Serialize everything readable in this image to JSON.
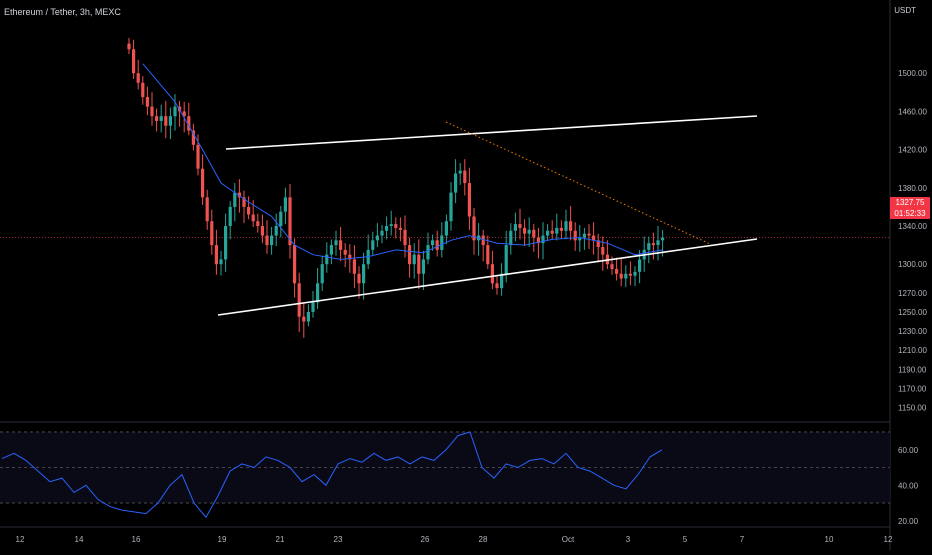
{
  "header": {
    "symbol_title": "Ethereum / Tether, 3h, MEXC",
    "currency_label": "USDT"
  },
  "price_badge": {
    "price": "1327.75",
    "countdown": "01:52:33"
  },
  "colors": {
    "background": "#000000",
    "up_candle": "#26a69a",
    "down_candle": "#ef5350",
    "ma_line": "#2962ff",
    "rsi_line": "#2962ff",
    "trendline": "#ffffff",
    "dotted_trendline": "#f57c00",
    "price_line": "#f23645",
    "grid": "#1a1a1a"
  },
  "chart_data": [
    {
      "type": "candlestick",
      "symbol": "ETH/USDT",
      "timeframe": "3h",
      "exchange": "MEXC",
      "ylim": [
        1140,
        1520
      ],
      "y_ticks": [
        1500,
        1460,
        1420,
        1380,
        1340,
        1300,
        1270,
        1250,
        1230,
        1210,
        1190,
        1170,
        1150
      ],
      "y_tick_labels": [
        "1500.00",
        "1460.00",
        "1420.00",
        "1380.00",
        "1340.00",
        "1300.00",
        "1270.00",
        "1250.00",
        "1230.00",
        "1210.00",
        "1190.00",
        "1170.00",
        "1150.00"
      ],
      "x_tick_labels": [
        "12",
        "14",
        "16",
        "19",
        "21",
        "23",
        "26",
        "28",
        "Oct",
        "3",
        "5",
        "7",
        "10",
        "12"
      ],
      "last_price": 1327.75,
      "price_path": [
        [
          0,
          1525
        ],
        [
          1,
          1500
        ],
        [
          2,
          1490
        ],
        [
          3,
          1475
        ],
        [
          4,
          1465
        ],
        [
          5,
          1455
        ],
        [
          6,
          1450
        ],
        [
          7,
          1455
        ],
        [
          8,
          1445
        ],
        [
          9,
          1455
        ],
        [
          10,
          1465
        ],
        [
          11,
          1460
        ],
        [
          12,
          1455
        ],
        [
          13,
          1440
        ],
        [
          14,
          1425
        ],
        [
          15,
          1400
        ],
        [
          16,
          1370
        ],
        [
          17,
          1345
        ],
        [
          18,
          1320
        ],
        [
          19,
          1300
        ],
        [
          20,
          1305
        ],
        [
          21,
          1340
        ],
        [
          22,
          1360
        ],
        [
          23,
          1375
        ],
        [
          24,
          1370
        ],
        [
          25,
          1360
        ],
        [
          26,
          1352
        ],
        [
          27,
          1345
        ],
        [
          28,
          1340
        ],
        [
          29,
          1330
        ],
        [
          30,
          1320
        ],
        [
          31,
          1330
        ],
        [
          32,
          1340
        ],
        [
          33,
          1355
        ],
        [
          34,
          1370
        ],
        [
          35,
          1320
        ],
        [
          36,
          1280
        ],
        [
          37,
          1245
        ],
        [
          38,
          1240
        ],
        [
          39,
          1250
        ],
        [
          40,
          1260
        ],
        [
          41,
          1280
        ],
        [
          42,
          1300
        ],
        [
          43,
          1310
        ],
        [
          44,
          1320
        ],
        [
          45,
          1325
        ],
        [
          46,
          1315
        ],
        [
          47,
          1310
        ],
        [
          48,
          1305
        ],
        [
          49,
          1290
        ],
        [
          50,
          1280
        ],
        [
          51,
          1300
        ],
        [
          52,
          1315
        ],
        [
          53,
          1325
        ],
        [
          54,
          1330
        ],
        [
          55,
          1335
        ],
        [
          56,
          1340
        ],
        [
          57,
          1342
        ],
        [
          58,
          1338
        ],
        [
          59,
          1336
        ],
        [
          60,
          1320
        ],
        [
          61,
          1300
        ],
        [
          62,
          1310
        ],
        [
          63,
          1290
        ],
        [
          64,
          1305
        ],
        [
          65,
          1320
        ],
        [
          66,
          1325
        ],
        [
          67,
          1315
        ],
        [
          68,
          1330
        ],
        [
          69,
          1345
        ],
        [
          70,
          1375
        ],
        [
          71,
          1395
        ],
        [
          72,
          1398
        ],
        [
          73,
          1385
        ],
        [
          74,
          1350
        ],
        [
          75,
          1325
        ],
        [
          76,
          1330
        ],
        [
          77,
          1320
        ],
        [
          78,
          1300
        ],
        [
          79,
          1280
        ],
        [
          80,
          1275
        ],
        [
          81,
          1290
        ],
        [
          82,
          1320
        ],
        [
          83,
          1335
        ],
        [
          84,
          1342
        ],
        [
          85,
          1338
        ],
        [
          86,
          1332
        ],
        [
          87,
          1336
        ],
        [
          88,
          1328
        ],
        [
          89,
          1322
        ],
        [
          90,
          1330
        ],
        [
          91,
          1335
        ],
        [
          92,
          1332
        ],
        [
          93,
          1338
        ],
        [
          94,
          1335
        ],
        [
          95,
          1345
        ],
        [
          96,
          1335
        ],
        [
          97,
          1325
        ],
        [
          98,
          1328
        ],
        [
          99,
          1332
        ],
        [
          100,
          1330
        ],
        [
          101,
          1325
        ],
        [
          102,
          1318
        ],
        [
          103,
          1310
        ],
        [
          104,
          1300
        ],
        [
          105,
          1295
        ],
        [
          106,
          1290
        ],
        [
          107,
          1285
        ],
        [
          108,
          1290
        ],
        [
          109,
          1288
        ],
        [
          110,
          1292
        ],
        [
          111,
          1305
        ],
        [
          112,
          1315
        ],
        [
          113,
          1322
        ],
        [
          114,
          1320
        ],
        [
          115,
          1325
        ],
        [
          116,
          1327.75
        ]
      ],
      "ma_path": [
        [
          3,
          1510
        ],
        [
          10,
          1470
        ],
        [
          16,
          1420
        ],
        [
          20,
          1385
        ],
        [
          26,
          1365
        ],
        [
          31,
          1350
        ],
        [
          36,
          1320
        ],
        [
          40,
          1310
        ],
        [
          46,
          1305
        ],
        [
          52,
          1308
        ],
        [
          58,
          1315
        ],
        [
          64,
          1312
        ],
        [
          70,
          1325
        ],
        [
          74,
          1330
        ],
        [
          80,
          1322
        ],
        [
          86,
          1320
        ],
        [
          92,
          1326
        ],
        [
          98,
          1328
        ],
        [
          104,
          1322
        ],
        [
          110,
          1310
        ],
        [
          116,
          1315
        ]
      ]
    },
    {
      "type": "line",
      "panel": "oscillator",
      "ylim": [
        15,
        75
      ],
      "y_ticks": [
        60,
        40,
        20
      ],
      "y_tick_labels": [
        "60.00",
        "40.00",
        "20.00"
      ],
      "guide_levels": [
        70,
        50,
        30
      ],
      "series": [
        {
          "values": [
            [
              0,
              55
            ],
            [
              3,
              58
            ],
            [
              6,
              54
            ],
            [
              9,
              48
            ],
            [
              12,
              42
            ],
            [
              15,
              44
            ],
            [
              18,
              36
            ],
            [
              21,
              40
            ],
            [
              24,
              32
            ],
            [
              27,
              28
            ],
            [
              30,
              26
            ],
            [
              33,
              25
            ],
            [
              36,
              24
            ],
            [
              39,
              30
            ],
            [
              42,
              40
            ],
            [
              45,
              46
            ],
            [
              48,
              30
            ],
            [
              51,
              22
            ],
            [
              54,
              34
            ],
            [
              57,
              48
            ],
            [
              60,
              52
            ],
            [
              63,
              50
            ],
            [
              66,
              56
            ],
            [
              69,
              54
            ],
            [
              72,
              50
            ],
            [
              75,
              42
            ],
            [
              78,
              46
            ],
            [
              81,
              40
            ],
            [
              84,
              52
            ],
            [
              87,
              55
            ],
            [
              90,
              53
            ],
            [
              93,
              58
            ],
            [
              96,
              54
            ],
            [
              99,
              56
            ],
            [
              102,
              52
            ],
            [
              105,
              56
            ],
            [
              108,
              54
            ],
            [
              111,
              60
            ],
            [
              114,
              68
            ],
            [
              117,
              70
            ],
            [
              120,
              50
            ],
            [
              123,
              44
            ],
            [
              126,
              52
            ],
            [
              129,
              50
            ],
            [
              132,
              54
            ],
            [
              135,
              55
            ],
            [
              138,
              52
            ],
            [
              141,
              58
            ],
            [
              144,
              50
            ],
            [
              147,
              48
            ],
            [
              150,
              44
            ],
            [
              153,
              40
            ],
            [
              156,
              38
            ],
            [
              159,
              46
            ],
            [
              162,
              56
            ],
            [
              165,
              60
            ]
          ]
        }
      ]
    }
  ]
}
